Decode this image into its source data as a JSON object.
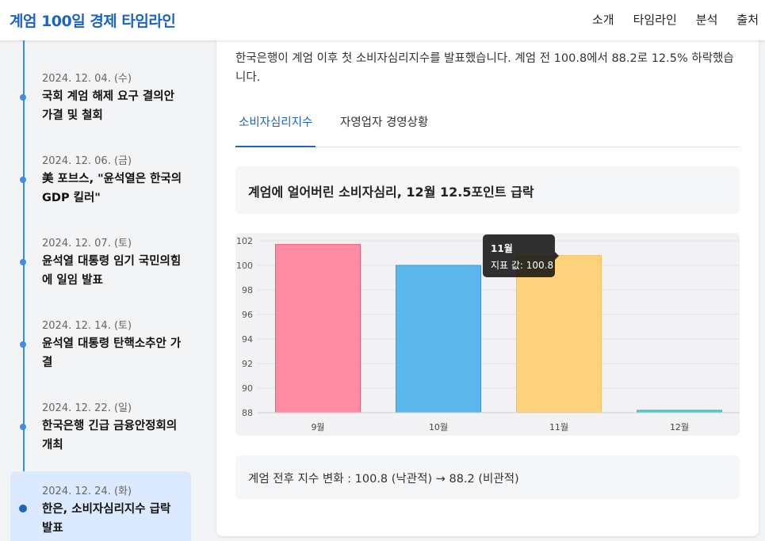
{
  "nav": {
    "brand": "계엄 100일 경제 타임라인",
    "links": [
      "소개",
      "타임라인",
      "분석",
      "출처"
    ]
  },
  "timeline": [
    {
      "date": "2024. 12. 04. (수)",
      "title": "국회 계엄 해제 요구 결의안 가결 및 철회",
      "active": false
    },
    {
      "date": "2024. 12. 06. (금)",
      "title": "美 포브스, \"윤석열은 한국의 GDP 킬러\"",
      "active": false
    },
    {
      "date": "2024. 12. 07. (토)",
      "title": "윤석열 대통령 임기 국민의힘에 일임 발표",
      "active": false
    },
    {
      "date": "2024. 12. 14. (토)",
      "title": "윤석열 대통령 탄핵소추안 가결",
      "active": false
    },
    {
      "date": "2024. 12. 22. (일)",
      "title": "한국은행 긴급 금융안정회의 개최",
      "active": false
    },
    {
      "date": "2024. 12. 24. (화)",
      "title": "한은, 소비자심리지수 급락 발표",
      "active": true
    }
  ],
  "main": {
    "description": "한국은행이 계엄 이후 첫 소비자심리지수를 발표했습니다. 계엄 전 100.8에서 88.2로 12.5% 하락했습니다.",
    "tabs": [
      {
        "label": "소비자심리지수",
        "active": true
      },
      {
        "label": "자영업자 경영상황",
        "active": false
      }
    ],
    "chart_title": "계엄에 얼어버린 소비자심리, 12월 12.5포인트 급락",
    "tooltip": {
      "title": "11월",
      "body": "지표 값: 100.8"
    },
    "summary": "계엄 전후 지수 변화 : 100.8 (낙관적) → 88.2 (비관적)"
  },
  "chart_data": {
    "type": "bar",
    "categories": [
      "9월",
      "10월",
      "11월",
      "12월"
    ],
    "values": [
      101.7,
      100.0,
      100.8,
      88.2
    ],
    "title": "",
    "xlabel": "",
    "ylabel": "",
    "ylim": [
      88,
      102
    ],
    "yticks": [
      88,
      90,
      92,
      94,
      96,
      98,
      100,
      102
    ],
    "grid": true,
    "legend": "none",
    "colors": [
      "#ff8aa3",
      "#5bb6ec",
      "#ffd27e",
      "#57c9c9"
    ],
    "border_colors": [
      "#ee5b7d",
      "#3a9ee0",
      "#f4c060",
      "#3bb8b8"
    ]
  },
  "colors": {
    "accent": "#1d64c2",
    "timeline": "#3b8ee6",
    "active_bg": "#dbeafe"
  }
}
